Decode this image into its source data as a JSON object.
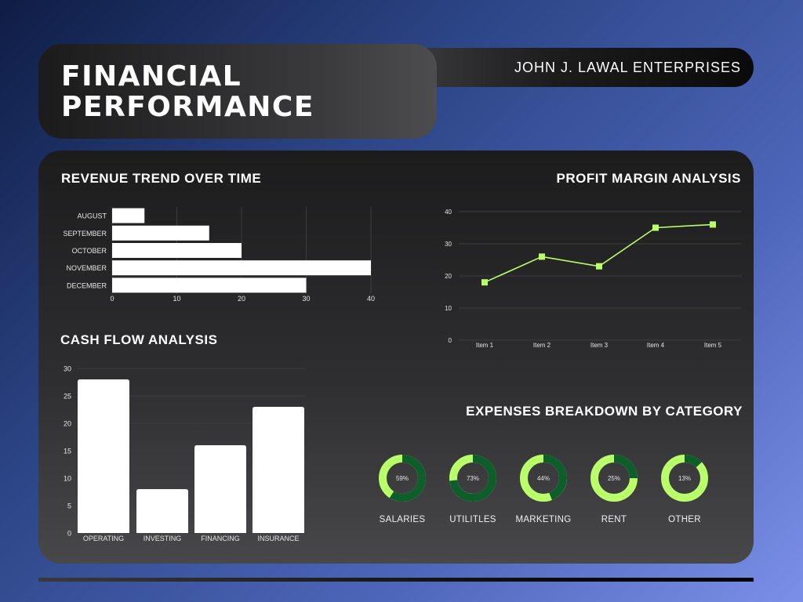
{
  "header": {
    "title_line1": "FINANCIAL",
    "title_line2": "PERFORMANCE",
    "company": "JOHN J. LAWAL ENTERPRISES"
  },
  "colors": {
    "accent": "#b9ff6a",
    "donut_fill": "#0d5e2a",
    "donut_track": "#b9ff6a",
    "bar": "#ffffff"
  },
  "chart_data": [
    {
      "type": "bar",
      "orientation": "horizontal",
      "title": "REVENUE TREND OVER TIME",
      "categories": [
        "AUGUST",
        "SEPTEMBER",
        "OCTOBER",
        "NOVEMBER",
        "DECEMBER"
      ],
      "values": [
        5,
        15,
        20,
        40,
        30
      ],
      "xticks": [
        0,
        10,
        20,
        30,
        40
      ],
      "xlim": [
        0,
        40
      ],
      "grid": true
    },
    {
      "type": "line",
      "title": "PROFIT MARGIN ANALYSIS",
      "categories": [
        "Item 1",
        "Item 2",
        "Item 3",
        "Item 4",
        "Item 5"
      ],
      "values": [
        18,
        26,
        23,
        35,
        36
      ],
      "yticks": [
        0,
        10,
        20,
        30,
        40
      ],
      "ylim": [
        0,
        40
      ],
      "grid": true
    },
    {
      "type": "bar",
      "orientation": "vertical",
      "title": "CASH FLOW ANALYSIS",
      "categories": [
        "OPERATING",
        "INVESTING",
        "FINANCING",
        "INSURANCE"
      ],
      "values": [
        28,
        8,
        16,
        23
      ],
      "yticks": [
        0,
        5,
        10,
        15,
        20,
        25,
        30
      ],
      "ylim": [
        0,
        30
      ],
      "grid": true
    },
    {
      "type": "pie",
      "style": "donut",
      "title": "EXPENSES BREAKDOWN BY CATEGORY",
      "items": [
        {
          "label": "SALARIES",
          "value": 59,
          "text": "59%"
        },
        {
          "label": "UTILITLES",
          "value": 73,
          "text": "73%"
        },
        {
          "label": "MARKETING",
          "value": 44,
          "text": "44%"
        },
        {
          "label": "RENT",
          "value": 25,
          "text": "25%"
        },
        {
          "label": "OTHER",
          "value": 13,
          "text": "13%"
        }
      ]
    }
  ]
}
